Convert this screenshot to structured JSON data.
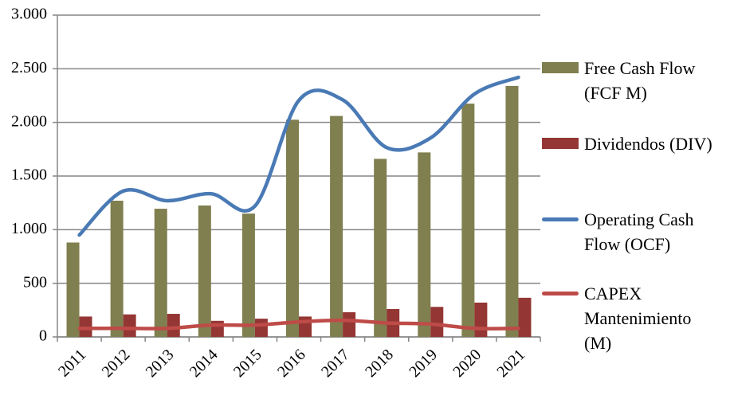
{
  "chart_data": {
    "type": "bar-line",
    "categories": [
      "2011",
      "2012",
      "2013",
      "2014",
      "2015",
      "2016",
      "2017",
      "2018",
      "2019",
      "2020",
      "2021"
    ],
    "series": [
      {
        "name": "Free Cash Flow (FCF M)",
        "type": "bar",
        "color": "#7f7f4f",
        "values": [
          880,
          1270,
          1195,
          1225,
          1150,
          2025,
          2060,
          1660,
          1720,
          2175,
          2340
        ]
      },
      {
        "name": "Dividendos (DIV)",
        "type": "bar",
        "color": "#943634",
        "values": [
          190,
          210,
          215,
          150,
          170,
          190,
          230,
          260,
          280,
          320,
          365
        ]
      },
      {
        "name": "Operating Cash Flow (OCF)",
        "type": "line",
        "color": "#4a7ab5",
        "values": [
          950,
          1360,
          1270,
          1335,
          1220,
          2205,
          2210,
          1765,
          1855,
          2265,
          2420
        ]
      },
      {
        "name": "CAPEX Mantenimiento (M)",
        "type": "line",
        "color": "#be4b48",
        "values": [
          80,
          80,
          80,
          110,
          110,
          140,
          155,
          130,
          120,
          80,
          80
        ]
      }
    ],
    "ylim": [
      0,
      3000
    ],
    "yticks": [
      0,
      500,
      {
        "value": 1000,
        "label": "1.000"
      },
      {
        "value": 1500,
        "label": "1.500"
      },
      {
        "value": 2000,
        "label": "2.000"
      },
      {
        "value": 2500,
        "label": "2.500"
      },
      {
        "value": 3000,
        "label": "3.000"
      }
    ],
    "grid": true,
    "legend": "right"
  }
}
